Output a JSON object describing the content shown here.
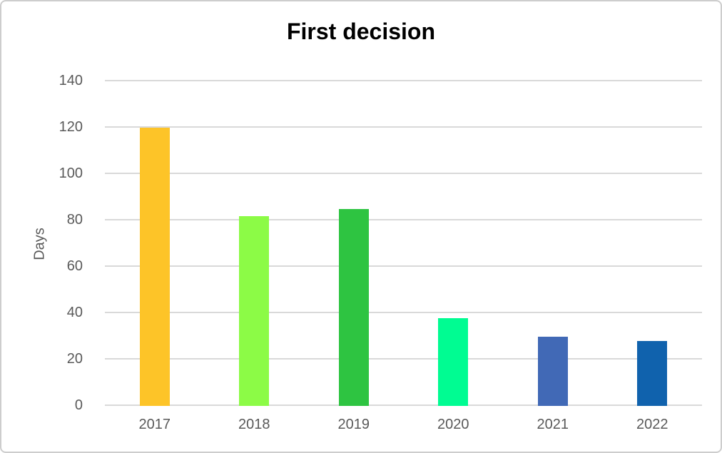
{
  "chart_data": {
    "type": "bar",
    "title": "First decision",
    "xlabel": "",
    "ylabel": "Days",
    "categories": [
      "2017",
      "2018",
      "2019",
      "2020",
      "2021",
      "2022"
    ],
    "values": [
      120,
      82,
      85,
      38,
      30,
      28
    ],
    "bar_colors": [
      "#FDC428",
      "#8CFB46",
      "#2EC441",
      "#00FC92",
      "#4169B6",
      "#1062AD"
    ],
    "ylim": [
      0,
      140
    ],
    "y_ticks": [
      0,
      20,
      40,
      60,
      80,
      100,
      120,
      140
    ],
    "grid": "horizontal",
    "legend": "none"
  },
  "colors": {
    "background": "#FFFFFF",
    "border": "#CDCDCD",
    "gridline": "#D9D9D9",
    "axis_text": "#595959",
    "title_text": "#000000"
  }
}
